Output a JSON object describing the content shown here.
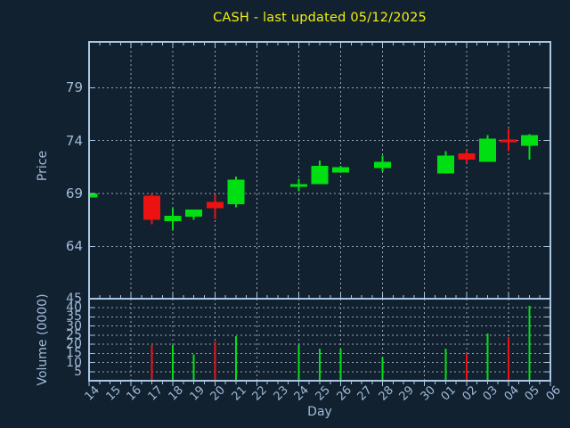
{
  "colors": {
    "background": "#122130",
    "frame": "#a9c7e2",
    "text": "#9fbbd8",
    "grid": "#99a3ad",
    "title": "#f0f010",
    "up": "#00df12",
    "down": "#ec1212"
  },
  "chart_data": {
    "type": "candlestick",
    "title": "CASH - last updated 05/12/2025",
    "xlabel": "Day",
    "price_axis": {
      "label": "Price",
      "ticks": [
        64,
        69,
        74,
        79
      ]
    },
    "volume_axis": {
      "label": "Volume (0000)",
      "ticks": [
        5,
        10,
        15,
        20,
        25,
        30,
        35,
        40,
        45
      ],
      "range": [
        0,
        45
      ]
    },
    "x_categories": [
      "14",
      "15",
      "16",
      "17",
      "18",
      "19",
      "20",
      "21",
      "22",
      "23",
      "24",
      "25",
      "26",
      "27",
      "28",
      "29",
      "30",
      "01",
      "02",
      "03",
      "04",
      "05",
      "06"
    ],
    "grid": "dashed; vertical lines on even days; horizontal on every price/volume tick",
    "legend": "none",
    "candles": [
      {
        "day": "14",
        "open": 68.6,
        "high": 69.0,
        "low": 68.5,
        "close": 69.0,
        "direction": "up",
        "volume_0000": null
      },
      {
        "day": "17",
        "open": 68.8,
        "high": 69.0,
        "low": 66.1,
        "close": 66.5,
        "direction": "down",
        "volume_0000": 19.5
      },
      {
        "day": "18",
        "open": 66.4,
        "high": 67.6,
        "low": 65.6,
        "close": 66.9,
        "direction": "up",
        "volume_0000": 19.5
      },
      {
        "day": "19",
        "open": 66.8,
        "high": 67.5,
        "low": 66.5,
        "close": 67.5,
        "direction": "up",
        "volume_0000": 14.5
      },
      {
        "day": "20",
        "open": 68.2,
        "high": 68.9,
        "low": 66.6,
        "close": 67.6,
        "direction": "down",
        "volume_0000": 21.5
      },
      {
        "day": "21",
        "open": 68.0,
        "high": 70.6,
        "low": 67.7,
        "close": 70.3,
        "direction": "up",
        "volume_0000": 24.5
      },
      {
        "day": "24",
        "open": 69.7,
        "high": 70.4,
        "low": 69.2,
        "close": 69.9,
        "direction": "up",
        "volume_0000": 19.5
      },
      {
        "day": "25",
        "open": 69.9,
        "high": 72.1,
        "low": 69.9,
        "close": 71.6,
        "direction": "up",
        "volume_0000": 17.5
      },
      {
        "day": "26",
        "open": 71.0,
        "high": 71.6,
        "low": 71.0,
        "close": 71.5,
        "direction": "up",
        "volume_0000": 17.5
      },
      {
        "day": "28",
        "open": 71.4,
        "high": 72.6,
        "low": 71.1,
        "close": 72.0,
        "direction": "up",
        "volume_0000": 13.0
      },
      {
        "day": "01",
        "open": 70.9,
        "high": 73.0,
        "low": 70.9,
        "close": 72.6,
        "direction": "up",
        "volume_0000": 17.5
      },
      {
        "day": "02",
        "open": 72.8,
        "high": 73.1,
        "low": 71.9,
        "close": 72.2,
        "direction": "down",
        "volume_0000": 15.0
      },
      {
        "day": "03",
        "open": 72.0,
        "high": 74.5,
        "low": 72.0,
        "close": 74.2,
        "direction": "up",
        "volume_0000": 26.0
      },
      {
        "day": "04",
        "open": 74.1,
        "high": 75.1,
        "low": 73.0,
        "close": 73.9,
        "direction": "down",
        "volume_0000": 24.0
      },
      {
        "day": "05",
        "open": 73.5,
        "high": 74.6,
        "low": 72.2,
        "close": 74.5,
        "direction": "up",
        "volume_0000": 41.0
      }
    ]
  }
}
